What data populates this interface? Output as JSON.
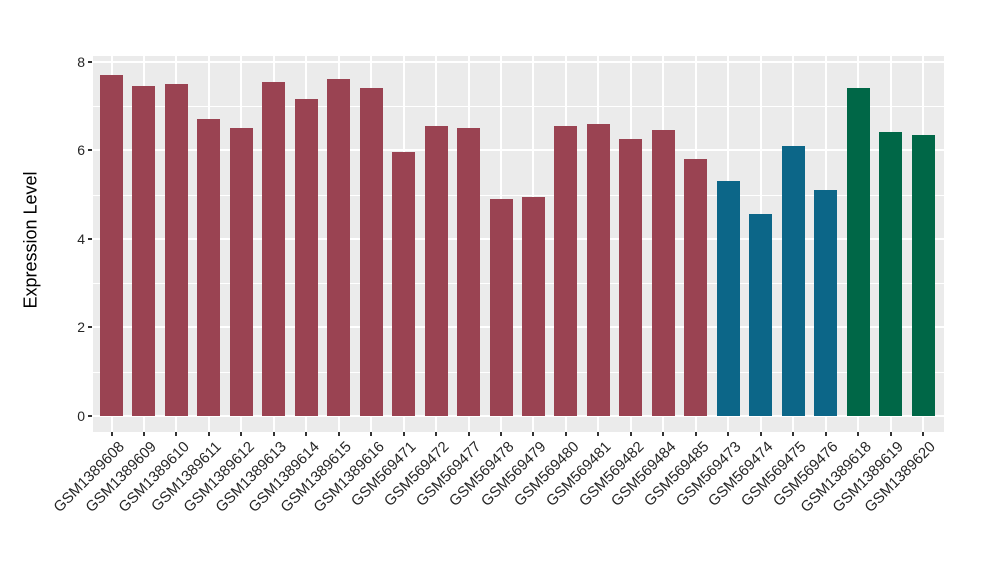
{
  "chart_data": {
    "type": "bar",
    "title": "",
    "ylabel": "Expression Level",
    "xlabel": "",
    "ylim": [
      0,
      8
    ],
    "yticks": [
      0,
      2,
      4,
      6,
      8
    ],
    "legend": "none",
    "grid": {
      "horizontal_major": true,
      "horizontal_minor": true,
      "vertical_major_at_bar_centers": true
    },
    "categories": [
      "GSM1389608",
      "GSM1389609",
      "GSM1389610",
      "GSM1389611",
      "GSM1389612",
      "GSM1389613",
      "GSM1389614",
      "GSM1389615",
      "GSM1389616",
      "GSM569471",
      "GSM569472",
      "GSM569477",
      "GSM569478",
      "GSM569479",
      "GSM569480",
      "GSM569481",
      "GSM569482",
      "GSM569484",
      "GSM569485",
      "GSM569473",
      "GSM569474",
      "GSM569475",
      "GSM569476",
      "GSM1389618",
      "GSM1389619",
      "GSM1389620"
    ],
    "values": [
      7.7,
      7.45,
      7.5,
      6.7,
      6.5,
      7.55,
      7.15,
      7.6,
      7.4,
      5.95,
      6.55,
      6.5,
      4.9,
      4.95,
      6.55,
      6.6,
      6.25,
      6.45,
      5.8,
      5.3,
      4.55,
      6.1,
      5.1,
      7.4,
      6.4,
      6.35
    ],
    "bar_groups": [
      "maroon",
      "maroon",
      "maroon",
      "maroon",
      "maroon",
      "maroon",
      "maroon",
      "maroon",
      "maroon",
      "maroon",
      "maroon",
      "maroon",
      "maroon",
      "maroon",
      "maroon",
      "maroon",
      "maroon",
      "maroon",
      "maroon",
      "teal",
      "teal",
      "teal",
      "teal",
      "green",
      "green",
      "green"
    ],
    "palette": {
      "maroon": "#9A4352",
      "teal": "#0C6688",
      "green": "#006747"
    }
  },
  "axes": {
    "y_tick_labels": [
      "0",
      "2",
      "4",
      "6",
      "8"
    ],
    "x_tick_label_rotation_deg": 45
  },
  "colors": {
    "background": "#FFFFFF",
    "panel_background": "#EBEBEB",
    "gridline": "#FFFFFF",
    "tick_mark": "#333333",
    "axis_text": "#262626",
    "axis_title": "#000000"
  }
}
